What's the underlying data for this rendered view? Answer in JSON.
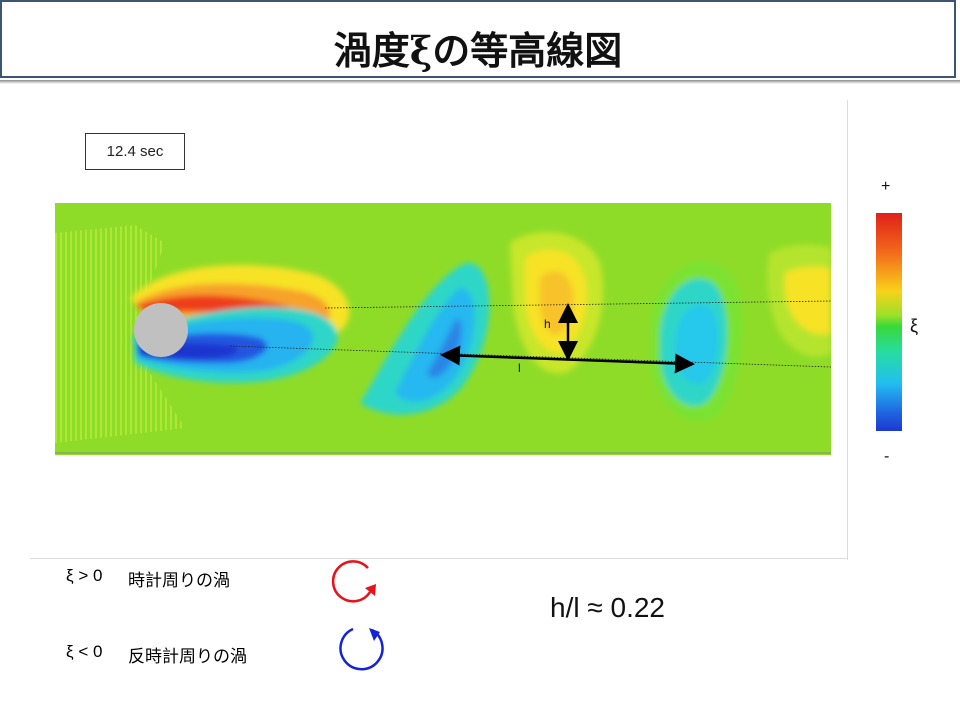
{
  "title": "渦度ξの等高線図",
  "time_label": "12.4 sec",
  "markers": {
    "h": "h",
    "l": "l"
  },
  "colorbar": {
    "plus": "+",
    "symbol": "ξ",
    "minus": "-"
  },
  "legend": {
    "positive": {
      "condition": "ξ > 0",
      "desc": "時計周りの渦",
      "color": "#e8121a"
    },
    "negative": {
      "condition": "ξ < 0",
      "desc": "反時計周りの渦",
      "color": "#1522d8"
    }
  },
  "ratio": "h/l ≈ 0.22"
}
